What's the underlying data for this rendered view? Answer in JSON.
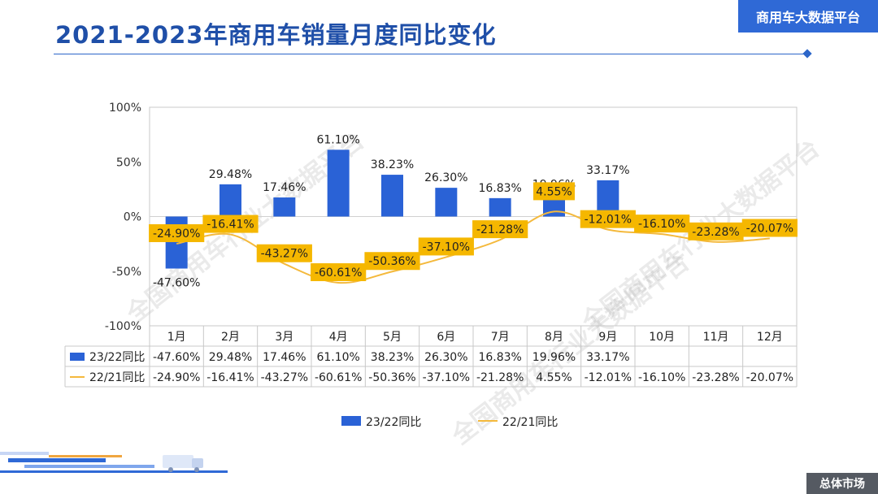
{
  "header": {
    "title": "2021-2023年商用车销量月度同比变化",
    "brand": "商用车大数据平台"
  },
  "footer": {
    "section": "总体市场"
  },
  "watermarks": [
    "全国商用车行业大数据平台",
    "全国商用车行业大数据平台",
    "全国商用车行业大数据平台"
  ],
  "colors": {
    "bar": "#2a62d6",
    "line": "#f4b93c",
    "label_box": "#f5b700",
    "title": "#1f4fa8"
  },
  "chart_data": {
    "type": "bar",
    "categories": [
      "1月",
      "2月",
      "3月",
      "4月",
      "5月",
      "6月",
      "7月",
      "8月",
      "9月",
      "10月",
      "11月",
      "12月"
    ],
    "y_ticks": [
      "100%",
      "50%",
      "0%",
      "-50%",
      "-100%"
    ],
    "ylim": [
      -100,
      100
    ],
    "grid": false,
    "legend_position": "bottom",
    "series": [
      {
        "name": "23/22同比",
        "type": "bar",
        "values": [
          -47.6,
          29.48,
          17.46,
          61.1,
          38.23,
          26.3,
          16.83,
          19.96,
          33.17,
          null,
          null,
          null
        ],
        "labels": [
          "-47.60%",
          "29.48%",
          "17.46%",
          "61.10%",
          "38.23%",
          "26.30%",
          "16.83%",
          "19.96%",
          "33.17%",
          "",
          "",
          ""
        ]
      },
      {
        "name": "22/21同比",
        "type": "line",
        "values": [
          -24.9,
          -16.41,
          -43.27,
          -60.61,
          -50.36,
          -37.1,
          -21.28,
          4.55,
          -12.01,
          -16.1,
          -23.28,
          -20.07
        ],
        "labels": [
          "-24.90%",
          "-16.41%",
          "-43.27%",
          "-60.61%",
          "-50.36%",
          "-37.10%",
          "-21.28%",
          "4.55%",
          "-12.01%",
          "-16.10%",
          "-23.28%",
          "-20.07%"
        ]
      }
    ]
  }
}
